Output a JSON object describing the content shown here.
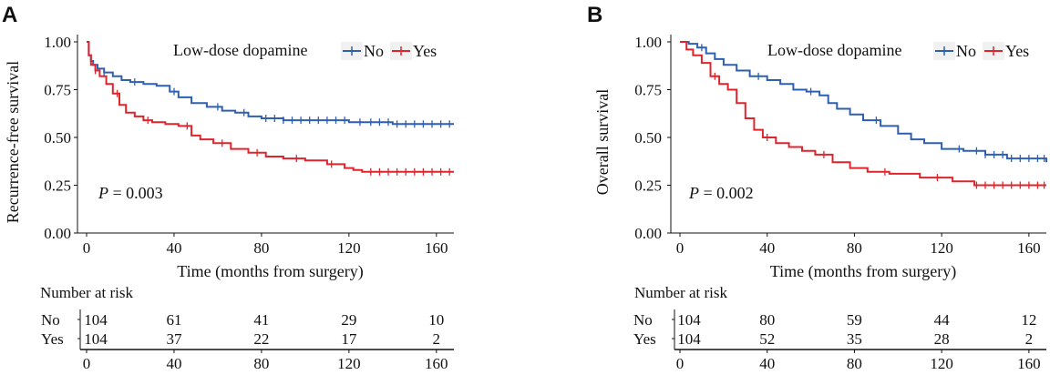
{
  "colors": {
    "no": "#2e5fb0",
    "yes": "#e0242c",
    "axis": "#111111"
  },
  "chart_data": [
    {
      "type": "line",
      "panel": "A",
      "ylabel": "Recurrence-free survival",
      "xlabel": "Time (months from surgery)",
      "xlim": [
        0,
        168
      ],
      "ylim": [
        0,
        1
      ],
      "xticks": [
        "0",
        "40",
        "80",
        "120",
        "160"
      ],
      "yticks": [
        "0.00",
        "0.25",
        "0.50",
        "0.75",
        "1.00"
      ],
      "legend_title": "Low-dose dopamine",
      "legend": [
        "No",
        "Yes"
      ],
      "p_label": "P",
      "p_value": " = 0.003",
      "risk_table": {
        "title": "Number at risk",
        "groups": [
          "No",
          "Yes"
        ],
        "times": [
          "0",
          "40",
          "80",
          "120",
          "160"
        ],
        "counts": [
          [
            "104",
            "61",
            "41",
            "29",
            "10"
          ],
          [
            "104",
            "37",
            "22",
            "17",
            "2"
          ]
        ]
      },
      "series": [
        {
          "name": "No",
          "x": [
            0,
            1,
            2,
            3,
            5,
            8,
            12,
            16,
            20,
            26,
            32,
            38,
            42,
            48,
            55,
            62,
            68,
            74,
            80,
            90,
            100,
            110,
            120,
            140,
            168
          ],
          "y": [
            1.0,
            0.93,
            0.9,
            0.88,
            0.86,
            0.84,
            0.82,
            0.8,
            0.79,
            0.78,
            0.77,
            0.74,
            0.71,
            0.68,
            0.66,
            0.64,
            0.63,
            0.61,
            0.6,
            0.59,
            0.59,
            0.59,
            0.58,
            0.57,
            0.57
          ],
          "censor_x": [
            8,
            22,
            40,
            60,
            72,
            82,
            86,
            90,
            94,
            98,
            102,
            106,
            110,
            114,
            118,
            125,
            130,
            134,
            138,
            142,
            146,
            150,
            154,
            158,
            162,
            166
          ]
        },
        {
          "name": "Yes",
          "x": [
            0,
            1,
            2,
            4,
            6,
            9,
            12,
            15,
            18,
            22,
            26,
            30,
            36,
            42,
            48,
            52,
            58,
            66,
            74,
            82,
            90,
            100,
            110,
            118,
            122,
            126,
            168
          ],
          "y": [
            1.0,
            0.93,
            0.88,
            0.85,
            0.82,
            0.78,
            0.73,
            0.67,
            0.63,
            0.61,
            0.59,
            0.58,
            0.57,
            0.56,
            0.51,
            0.49,
            0.47,
            0.44,
            0.42,
            0.4,
            0.39,
            0.38,
            0.36,
            0.34,
            0.33,
            0.32,
            0.32
          ],
          "censor_x": [
            4,
            14,
            28,
            46,
            62,
            78,
            96,
            112,
            130,
            134,
            138,
            142,
            146,
            150,
            154,
            158,
            162,
            166
          ]
        }
      ]
    },
    {
      "type": "line",
      "panel": "B",
      "ylabel": "Overall survival",
      "xlabel": "Time (months from surgery)",
      "xlim": [
        0,
        168
      ],
      "ylim": [
        0,
        1
      ],
      "xticks": [
        "0",
        "40",
        "80",
        "120",
        "160"
      ],
      "yticks": [
        "0.00",
        "0.25",
        "0.50",
        "0.75",
        "1.00"
      ],
      "legend_title": "Low-dose dopamine",
      "legend": [
        "No",
        "Yes"
      ],
      "p_label": "P",
      "p_value": " = 0.002",
      "risk_table": {
        "title": "Number at risk",
        "groups": [
          "No",
          "Yes"
        ],
        "times": [
          "0",
          "40",
          "80",
          "120",
          "160"
        ],
        "counts": [
          [
            "104",
            "80",
            "59",
            "44",
            "12"
          ],
          [
            "104",
            "52",
            "35",
            "28",
            "2"
          ]
        ]
      },
      "series": [
        {
          "name": "No",
          "x": [
            0,
            4,
            8,
            12,
            16,
            20,
            26,
            32,
            40,
            46,
            52,
            58,
            64,
            68,
            72,
            78,
            84,
            92,
            100,
            106,
            112,
            120,
            130,
            140,
            150,
            168
          ],
          "y": [
            1.0,
            0.99,
            0.97,
            0.94,
            0.91,
            0.88,
            0.85,
            0.82,
            0.8,
            0.78,
            0.75,
            0.74,
            0.72,
            0.68,
            0.65,
            0.62,
            0.59,
            0.56,
            0.52,
            0.49,
            0.47,
            0.44,
            0.43,
            0.41,
            0.39,
            0.37
          ],
          "censor_x": [
            10,
            36,
            60,
            90,
            128,
            136,
            140,
            144,
            148,
            152,
            156,
            160,
            164,
            167
          ]
        },
        {
          "name": "Yes",
          "x": [
            0,
            3,
            6,
            10,
            14,
            18,
            22,
            26,
            30,
            34,
            38,
            44,
            50,
            56,
            62,
            70,
            78,
            86,
            96,
            110,
            125,
            135,
            168
          ],
          "y": [
            1.0,
            0.96,
            0.93,
            0.89,
            0.82,
            0.78,
            0.75,
            0.68,
            0.6,
            0.54,
            0.5,
            0.47,
            0.45,
            0.43,
            0.41,
            0.37,
            0.34,
            0.32,
            0.31,
            0.29,
            0.27,
            0.25,
            0.25
          ],
          "censor_x": [
            16,
            40,
            66,
            94,
            118,
            136,
            140,
            144,
            148,
            152,
            156,
            160,
            164,
            167
          ]
        }
      ]
    }
  ]
}
